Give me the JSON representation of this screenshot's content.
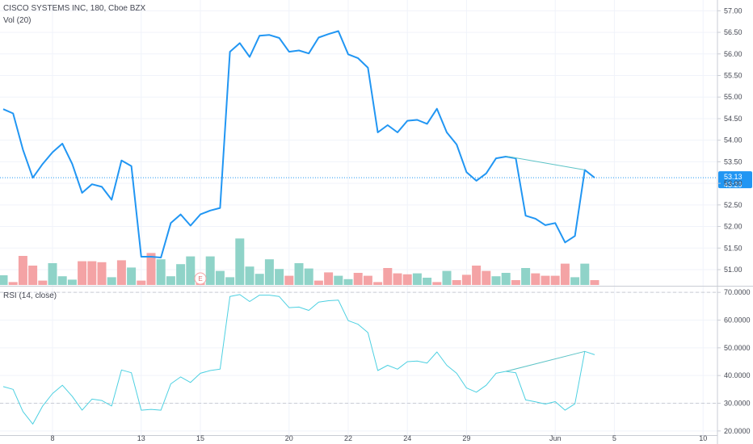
{
  "legend": {
    "symbol": "CISCO SYSTEMS INC, 180, Cboe BZX",
    "volume": "Vol (20)",
    "rsi": "RSI (14, close)"
  },
  "badges": {
    "last_price": "53.13",
    "countdown": "43:29",
    "earnings": "E"
  },
  "colors": {
    "price_line": "#2196f3",
    "rsi_line": "#4dd0e1",
    "volume_up": "#8fd3c8",
    "volume_down": "#f4a3a5",
    "trendline": "#5cc3c6",
    "badge_bg": "#2196f3"
  },
  "chart_data": [
    {
      "type": "line",
      "x_ticks": [
        "8",
        "13",
        "15",
        "20",
        "22",
        "24",
        "29",
        "Jun",
        "5",
        "10"
      ],
      "y_ticks": [
        "57.00",
        "56.50",
        "56.00",
        "55.50",
        "55.00",
        "54.50",
        "54.00",
        "53.50",
        "53.00",
        "52.50",
        "52.00",
        "51.50",
        "51.00"
      ],
      "ylim": [
        50.85,
        57.1
      ],
      "series": [
        {
          "values": [
            54.72,
            54.62,
            53.78,
            53.13,
            53.45,
            53.72,
            53.92,
            53.45,
            52.78,
            52.98,
            52.92,
            52.62,
            53.53,
            53.4,
            51.3,
            51.3,
            51.28,
            52.08,
            52.28,
            52.02,
            52.28,
            52.37,
            52.43,
            56.05,
            56.25,
            55.93,
            56.42,
            56.44,
            56.37,
            56.05,
            56.08,
            56.01,
            56.38,
            56.46,
            56.53,
            55.99,
            55.9,
            55.68,
            54.18,
            54.35,
            54.18,
            54.45,
            54.47,
            54.38,
            54.73,
            54.18,
            53.9,
            53.26,
            53.06,
            53.23,
            53.58,
            53.62,
            53.58,
            52.25,
            52.18,
            52.03,
            52.08,
            51.63,
            51.78,
            53.31,
            53.13
          ]
        }
      ],
      "trendline": {
        "from": [
          51,
          53.63
        ],
        "to": [
          59,
          53.31
        ]
      }
    },
    {
      "type": "bar",
      "series": [
        {
          "values": [
            2.0,
            0.6,
            6.0,
            4.0,
            0.9,
            4.5,
            1.8,
            1.1,
            4.9,
            4.9,
            4.7,
            1.6,
            5.1,
            3.6,
            0.9,
            6.6,
            5.3,
            1.8,
            4.3,
            5.9,
            1.2,
            5.9,
            2.9,
            1.6,
            9.6,
            3.8,
            2.3,
            5.3,
            3.3,
            1.9,
            4.5,
            3.4,
            0.9,
            2.6,
            1.9,
            1.2,
            2.5,
            1.9,
            0.6,
            3.5,
            2.4,
            2.2,
            2.4,
            1.5,
            0.6,
            2.9,
            1.0,
            2.1,
            4.0,
            2.9,
            1.8,
            2.5,
            1.0,
            3.5,
            2.4,
            1.9,
            1.9,
            4.4,
            1.6,
            4.4,
            1.0
          ],
          "up": [
            true,
            false,
            false,
            false,
            false,
            true,
            true,
            true,
            false,
            false,
            false,
            true,
            false,
            true,
            false,
            false,
            true,
            true,
            true,
            true,
            false,
            true,
            true,
            true,
            true,
            true,
            true,
            true,
            true,
            false,
            true,
            true,
            false,
            false,
            true,
            true,
            false,
            false,
            false,
            false,
            false,
            false,
            true,
            true,
            false,
            true,
            false,
            false,
            false,
            false,
            true,
            true,
            false,
            true,
            false,
            false,
            false,
            false,
            true,
            true,
            false
          ]
        }
      ]
    },
    {
      "type": "line",
      "y_ticks": [
        "70.0000",
        "60.0000",
        "50.0000",
        "40.0000",
        "30.0000",
        "20.0000"
      ],
      "ylim": [
        18.5,
        71.8
      ],
      "bands": [
        70,
        30
      ],
      "series": [
        {
          "values": [
            36.0,
            35.0,
            27.0,
            22.5,
            29.0,
            33.5,
            36.5,
            32.5,
            27.5,
            31.5,
            31.0,
            29.0,
            42.0,
            41.0,
            27.5,
            27.8,
            27.5,
            37.0,
            39.5,
            37.5,
            40.8,
            41.8,
            42.3,
            68.5,
            69.2,
            66.7,
            69.0,
            69.0,
            68.5,
            64.5,
            64.7,
            63.5,
            66.5,
            67.0,
            67.2,
            59.8,
            58.5,
            55.5,
            41.8,
            43.7,
            42.3,
            45.0,
            45.2,
            44.5,
            48.5,
            43.7,
            40.8,
            35.5,
            34.0,
            36.5,
            40.8,
            41.5,
            41.0,
            31.2,
            30.5,
            29.7,
            30.6,
            27.5,
            29.8,
            48.7,
            47.5
          ]
        }
      ],
      "trendline": {
        "from": [
          51,
          41.5
        ],
        "to": [
          59,
          48.7
        ]
      }
    }
  ]
}
